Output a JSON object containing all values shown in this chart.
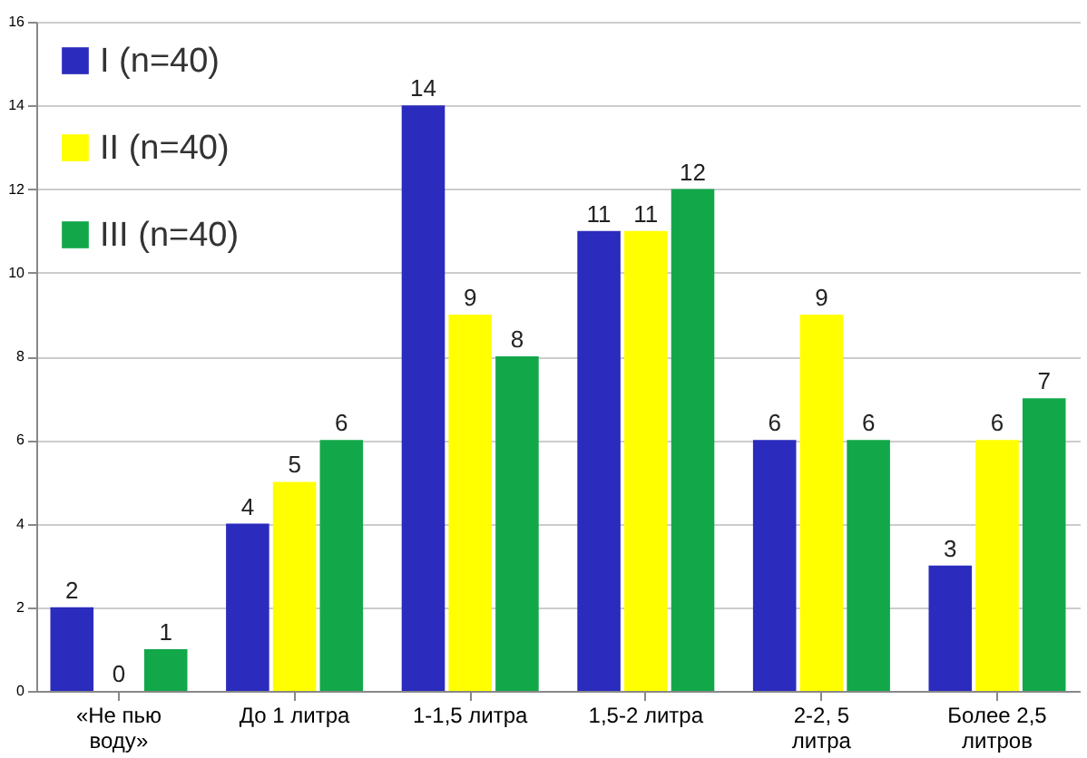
{
  "chart_data": {
    "type": "bar",
    "categories": [
      "«Не пью воду»",
      "До 1 литра",
      "1-1,5 литра",
      "1,5-2 литра",
      "2-2, 5 литра",
      "Более 2,5 литров"
    ],
    "series": [
      {
        "name": "I (n=40)",
        "color": "#2b2bbd",
        "values": [
          2,
          4,
          14,
          11,
          6,
          3
        ]
      },
      {
        "name": "II (n=40)",
        "color": "#ffff00",
        "values": [
          0,
          5,
          9,
          11,
          9,
          6
        ]
      },
      {
        "name": "III (n=40)",
        "color": "#12a84a",
        "values": [
          1,
          6,
          8,
          12,
          6,
          7
        ]
      }
    ],
    "ylim": [
      0,
      16
    ],
    "yticks": [
      0,
      2,
      4,
      6,
      8,
      10,
      12,
      14,
      16
    ],
    "grid": "y",
    "legend": "top left",
    "data_labels": true
  }
}
